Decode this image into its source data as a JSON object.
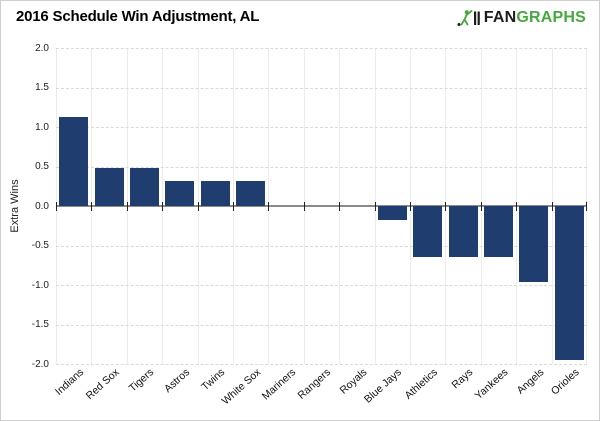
{
  "header": {
    "title": "2016 Schedule Win Adjustment, AL",
    "logo": {
      "fan": "FAN",
      "graphs": "GRAPHS",
      "fan_color": "#1d1d1d",
      "graphs_color": "#45a93c"
    }
  },
  "chart_data": {
    "type": "bar",
    "title": "2016 Schedule Win Adjustment, AL",
    "xlabel": "",
    "ylabel": "Extra Wins",
    "ylim": [
      -2.0,
      2.0
    ],
    "ytick_step": 0.5,
    "ytick_labels": [
      "2.0",
      "1.5",
      "1.0",
      "0.5",
      "0.0",
      "-0.5",
      "-1.0",
      "-1.5",
      "-2.0"
    ],
    "categories": [
      "Indians",
      "Red Sox",
      "Tigers",
      "Astros",
      "Twins",
      "White Sox",
      "Mariners",
      "Rangers",
      "Royals",
      "Blue Jays",
      "Athletics",
      "Rays",
      "Yankees",
      "Angels",
      "Orioles"
    ],
    "values": [
      1.13,
      0.48,
      0.48,
      0.32,
      0.32,
      0.32,
      0.0,
      0.0,
      0.0,
      -0.18,
      -0.65,
      -0.65,
      -0.65,
      -0.96,
      -1.95
    ],
    "bar_color": "#1f3d6e",
    "grid": true,
    "legend": "none"
  }
}
